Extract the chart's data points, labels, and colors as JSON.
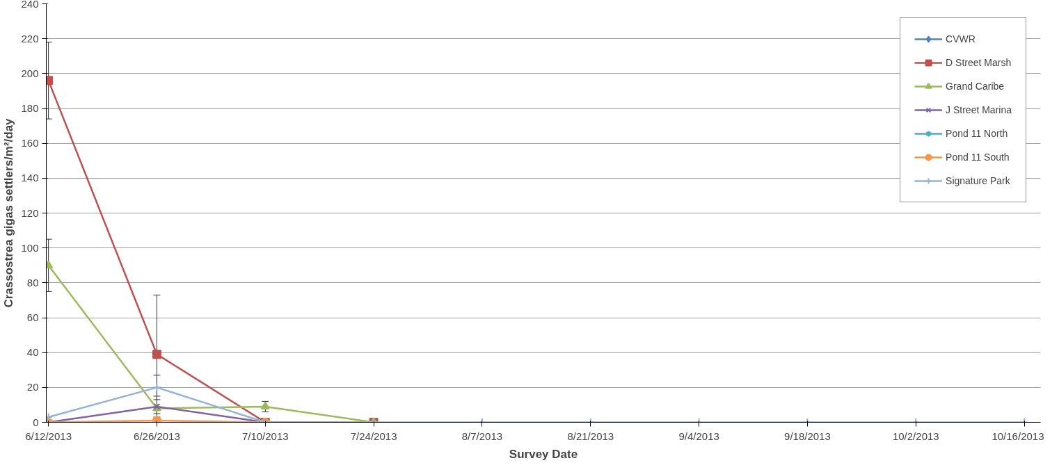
{
  "chart_data": {
    "type": "line",
    "xlabel": "Survey Date",
    "ylabel": "Crassostrea gigas settlers/m²/day",
    "categories": [
      "6/12/2013",
      "6/26/2013",
      "7/10/2013",
      "7/24/2013",
      "8/7/2013",
      "8/21/2013",
      "9/4/2013",
      "9/18/2013",
      "10/2/2013",
      "10/16/2013"
    ],
    "ylim": [
      0,
      240
    ],
    "yticks": [
      0,
      20,
      40,
      60,
      80,
      100,
      120,
      140,
      160,
      180,
      200,
      220,
      240
    ],
    "grid": "y",
    "legend": "top right",
    "series": [
      {
        "name": "CVWR",
        "color": "#4f81bd",
        "marker": "diamond",
        "values": [
          null,
          null,
          null,
          null,
          null,
          null,
          null,
          null,
          null,
          null
        ]
      },
      {
        "name": "D Street Marsh",
        "color": "#c0504d",
        "marker": "square",
        "values": [
          196,
          39,
          0,
          0,
          null,
          null,
          null,
          null,
          null,
          null
        ],
        "errors": [
          22,
          34,
          null,
          null,
          null,
          null,
          null,
          null,
          null,
          null
        ]
      },
      {
        "name": "Grand Caribe",
        "color": "#9bbb59",
        "marker": "triangle",
        "values": [
          90,
          8,
          9,
          0,
          null,
          null,
          null,
          null,
          null,
          null
        ],
        "errors": [
          15,
          null,
          3,
          null,
          null,
          null,
          null,
          null,
          null,
          null
        ]
      },
      {
        "name": "J Street Marina",
        "color": "#8064a2",
        "marker": "x",
        "values": [
          0,
          9,
          0,
          null,
          null,
          null,
          null,
          null,
          null,
          null
        ],
        "errors": [
          null,
          6,
          null,
          null,
          null,
          null,
          null,
          null,
          null,
          null
        ]
      },
      {
        "name": "Pond 11 North",
        "color": "#4bacc6",
        "marker": "star",
        "values": [
          null,
          null,
          null,
          null,
          null,
          null,
          null,
          null,
          null,
          null
        ]
      },
      {
        "name": "Pond 11 South",
        "color": "#f79646",
        "marker": "circle",
        "values": [
          0,
          1,
          0,
          null,
          null,
          null,
          null,
          null,
          null,
          null
        ]
      },
      {
        "name": "Signature Park",
        "color": "#95b3d7",
        "marker": "cross",
        "values": [
          3,
          20,
          0,
          0,
          0,
          0,
          0,
          0,
          0,
          0
        ],
        "errors": [
          null,
          7,
          null,
          null,
          null,
          null,
          null,
          null,
          null,
          null
        ]
      }
    ]
  }
}
